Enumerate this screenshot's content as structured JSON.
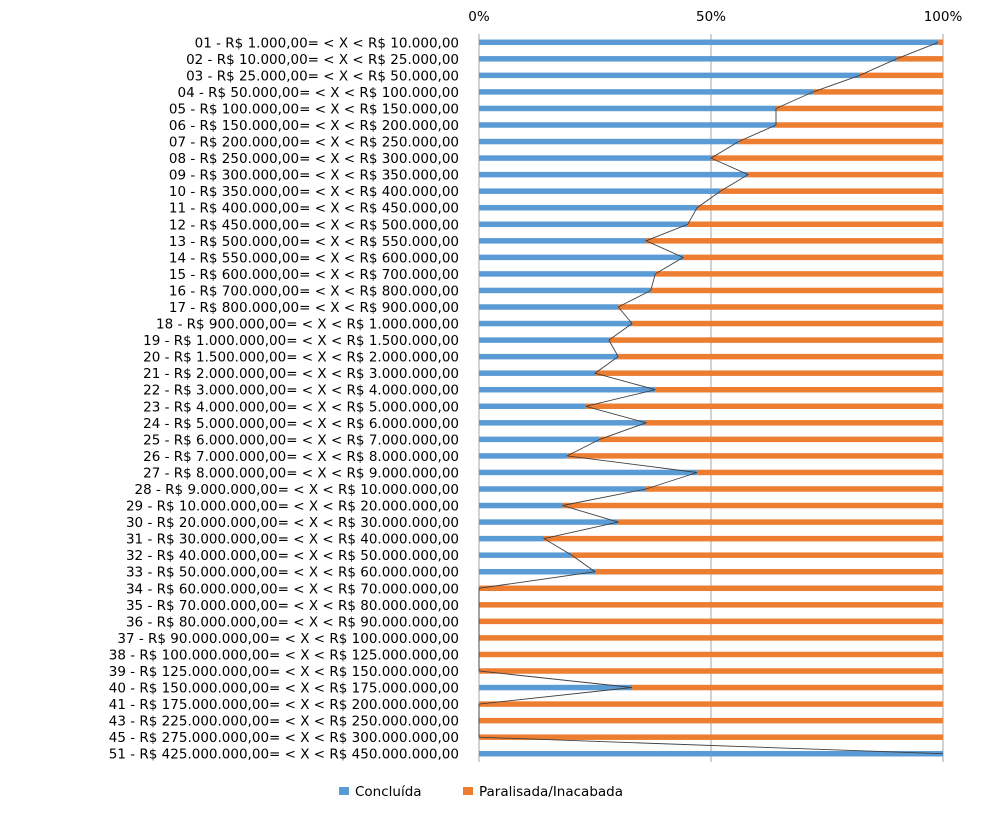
{
  "chart_data": {
    "type": "bar",
    "orientation": "horizontal",
    "stacked": "100%",
    "title": "",
    "xlabel": "",
    "ylabel": "",
    "xlim": [
      0,
      100
    ],
    "x_ticks": [
      "0%",
      "50%",
      "100%"
    ],
    "x_tick_values": [
      0,
      50,
      100
    ],
    "grid": true,
    "legend_position": "bottom",
    "categories": [
      "01 - R$ 1.000,00= <  X < R$ 10.000,00",
      "02 - R$ 10.000,00= <  X < R$ 25.000,00",
      "03 - R$ 25.000,00= <  X < R$ 50.000,00",
      "04 - R$ 50.000,00= <  X < R$ 100.000,00",
      "05 - R$ 100.000,00= <  X < R$ 150.000,00",
      "06 - R$ 150.000,00= <  X < R$ 200.000,00",
      "07 - R$ 200.000,00= <  X < R$ 250.000,00",
      "08 - R$ 250.000,00= <  X < R$ 300.000,00",
      "09 - R$ 300.000,00= <  X < R$ 350.000,00",
      "10 - R$ 350.000,00= <  X < R$ 400.000,00",
      "11 - R$ 400.000,00= <  X < R$ 450.000,00",
      "12 - R$ 450.000,00= <  X < R$ 500.000,00",
      "13 - R$ 500.000,00= <  X < R$ 550.000,00",
      "14 - R$ 550.000,00= <  X < R$ 600.000,00",
      "15 - R$ 600.000,00= <  X < R$ 700.000,00",
      "16 - R$ 700.000,00= <  X < R$ 800.000,00",
      "17 - R$ 800.000,00= <  X < R$ 900.000,00",
      "18 - R$ 900.000,00= <  X < R$ 1.000.000,00",
      "19 - R$ 1.000.000,00= <  X < R$ 1.500.000,00",
      "20 - R$ 1.500.000,00= <  X < R$ 2.000.000,00",
      "21 - R$ 2.000.000,00= <  X < R$ 3.000.000,00",
      "22 - R$ 3.000.000,00= <  X < R$ 4.000.000,00",
      "23 - R$ 4.000.000,00= <  X < R$ 5.000.000,00",
      "24 - R$ 5.000.000,00= <  X < R$ 6.000.000,00",
      "25 - R$ 6.000.000,00= <  X < R$ 7.000.000,00",
      "26 - R$ 7.000.000,00= <  X < R$ 8.000.000,00",
      "27 - R$ 8.000.000,00= <  X < R$ 9.000.000,00",
      "28 - R$ 9.000.000,00= <  X < R$ 10.000.000,00",
      "29 - R$ 10.000.000,00= <  X < R$ 20.000.000,00",
      "30 - R$ 20.000.000,00= <  X < R$ 30.000.000,00",
      "31 - R$ 30.000.000,00= <  X < R$ 40.000.000,00",
      "32 - R$ 40.000.000,00= <  X < R$ 50.000.000,00",
      "33 - R$ 50.000.000,00= <  X < R$ 60.000.000,00",
      "34 - R$ 60.000.000,00= <  X < R$ 70.000.000,00",
      "35 - R$ 70.000.000,00= <  X < R$ 80.000.000,00",
      "36 - R$ 80.000.000,00= <  X < R$ 90.000.000,00",
      "37 - R$ 90.000.000,00= <  X < R$ 100.000.000,00",
      "38 - R$ 100.000.000,00= <  X < R$ 125.000.000,00",
      "39 - R$ 125.000.000,00= <  X < R$ 150.000.000,00",
      "40 - R$ 150.000.000,00= <  X < R$ 175.000.000,00",
      "41 - R$ 175.000.000,00= <  X < R$ 200.000.000,00",
      "43 - R$ 225.000.000,00= <  X < R$ 250.000.000,00",
      "45 - R$ 275.000.000,00= <  X < R$ 300.000.000,00",
      "51 - R$ 425.000.000,00= <  X < R$ 450.000.000,00"
    ],
    "series": [
      {
        "name": "Concluída",
        "color": "#5B9BD5",
        "values": [
          99,
          90,
          82,
          72,
          64,
          64,
          56,
          50,
          58,
          52,
          47,
          45,
          36,
          44,
          38,
          37,
          30,
          33,
          28,
          30,
          25,
          38,
          23,
          36,
          26,
          19,
          47,
          36,
          18,
          30,
          14,
          20,
          25,
          0,
          0,
          0,
          0,
          0,
          0,
          33,
          0,
          0,
          0,
          100
        ]
      },
      {
        "name": "Paralisada/Inacabada",
        "color": "#ED7D31",
        "values": [
          1,
          10,
          18,
          28,
          36,
          36,
          44,
          50,
          42,
          48,
          53,
          55,
          64,
          56,
          62,
          63,
          70,
          67,
          72,
          70,
          75,
          62,
          77,
          64,
          74,
          81,
          53,
          64,
          82,
          70,
          86,
          80,
          75,
          100,
          100,
          100,
          100,
          100,
          100,
          67,
          100,
          100,
          100,
          0
        ]
      }
    ]
  }
}
